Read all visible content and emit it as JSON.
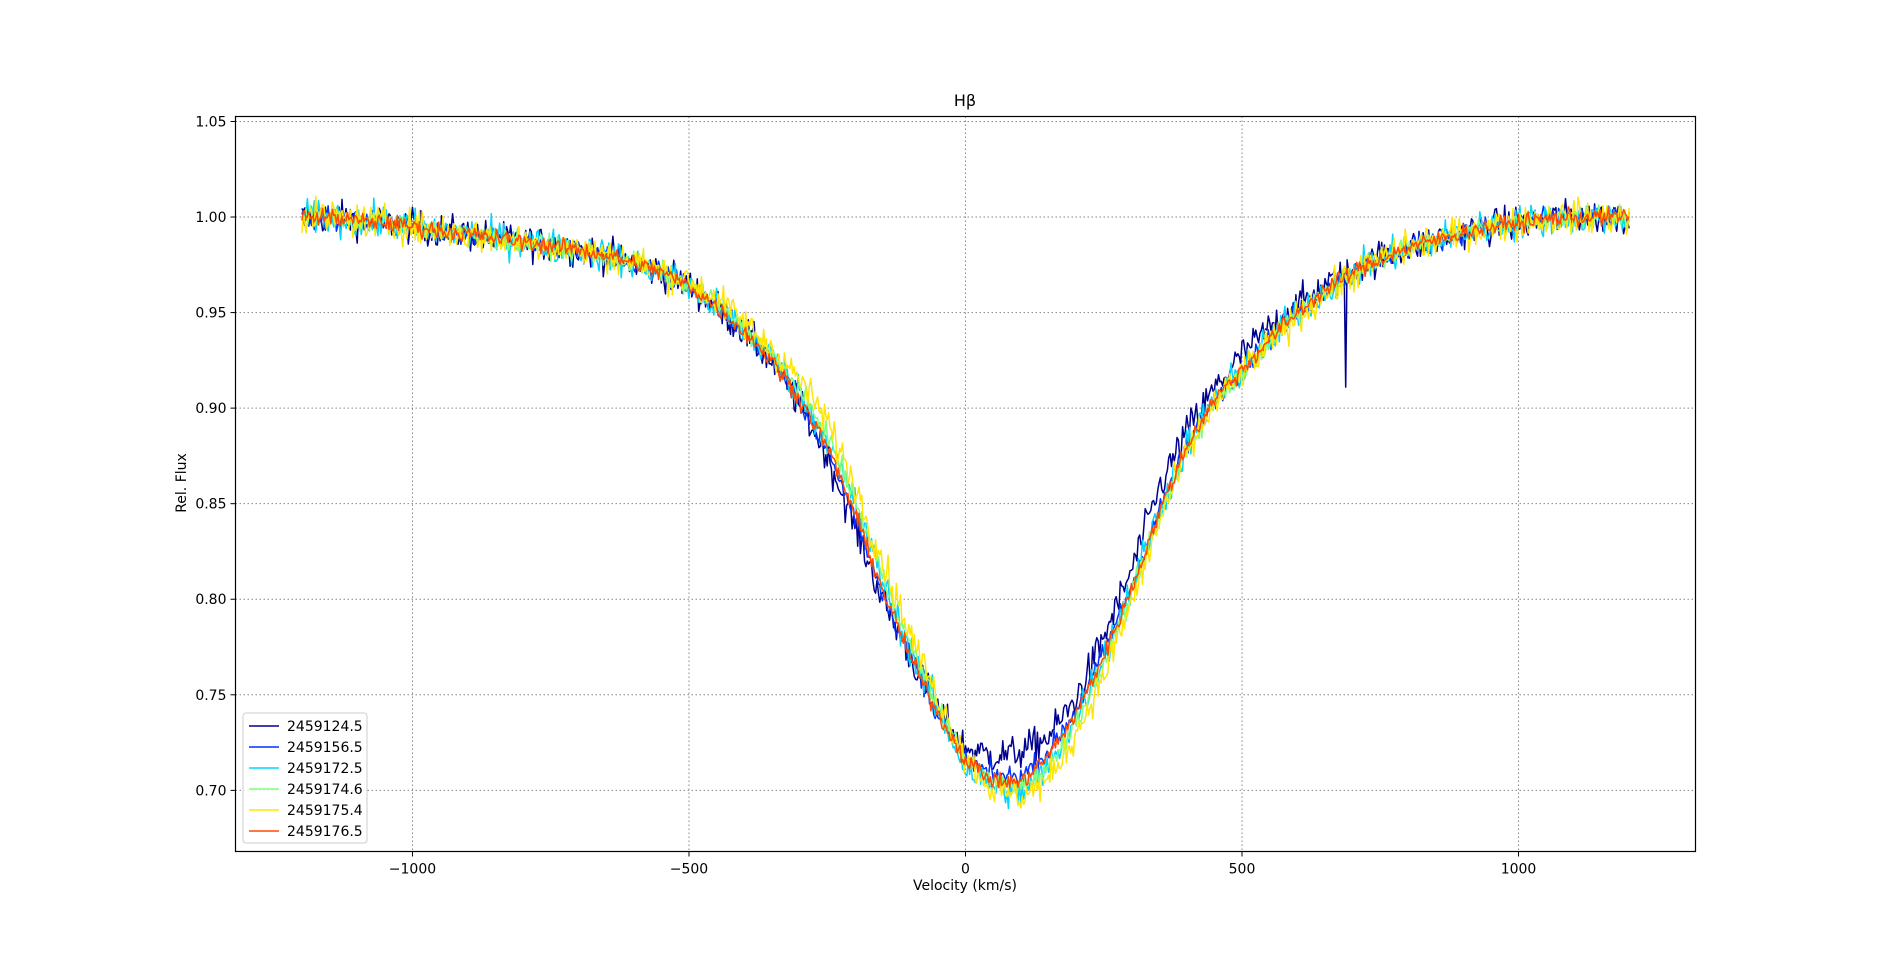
{
  "chart_data": {
    "type": "line",
    "title": "Hβ",
    "xlabel": "Velocity (km/s)",
    "ylabel": "Rel. Flux",
    "xlim": [
      -1320,
      1320
    ],
    "ylim": [
      0.668,
      1.0526
    ],
    "xticks": [
      -1000,
      -500,
      0,
      500,
      1000
    ],
    "xtick_labels": [
      "−1000",
      "−500",
      "0",
      "500",
      "1000"
    ],
    "yticks": [
      0.7,
      0.75,
      0.8,
      0.85,
      0.9,
      0.95,
      1.0,
      1.05
    ],
    "ytick_labels": [
      "0.70",
      "0.75",
      "0.80",
      "0.85",
      "0.90",
      "0.95",
      "1.00",
      "1.05"
    ],
    "grid": true,
    "legend_position": "lower-left",
    "x": [
      -1200,
      -1150,
      -1100,
      -1050,
      -1000,
      -950,
      -900,
      -850,
      -800,
      -750,
      -700,
      -650,
      -600,
      -550,
      -500,
      -450,
      -400,
      -350,
      -300,
      -250,
      -200,
      -150,
      -100,
      -50,
      0,
      50,
      100,
      150,
      200,
      250,
      300,
      350,
      400,
      450,
      500,
      550,
      600,
      650,
      700,
      750,
      800,
      850,
      900,
      950,
      1000,
      1050,
      1100,
      1150,
      1200
    ],
    "series": [
      {
        "name": "2459124.5",
        "color": "#00008f",
        "noise": 0.008,
        "spike": [
          688,
          0.911
        ],
        "values": [
          1.0,
          1.0,
          0.998,
          0.997,
          0.995,
          0.993,
          0.991,
          0.989,
          0.987,
          0.985,
          0.983,
          0.98,
          0.976,
          0.971,
          0.964,
          0.953,
          0.94,
          0.924,
          0.902,
          0.875,
          0.838,
          0.8,
          0.77,
          0.742,
          0.722,
          0.718,
          0.72,
          0.728,
          0.748,
          0.78,
          0.815,
          0.858,
          0.888,
          0.91,
          0.928,
          0.942,
          0.954,
          0.964,
          0.972,
          0.979,
          0.984,
          0.988,
          0.992,
          0.995,
          0.997,
          0.999,
          1.0,
          1.0,
          1.0
        ]
      },
      {
        "name": "2459156.5",
        "color": "#0033ff",
        "noise": 0.005,
        "values": [
          1.0,
          1.0,
          0.998,
          0.997,
          0.995,
          0.993,
          0.991,
          0.989,
          0.987,
          0.985,
          0.983,
          0.98,
          0.976,
          0.971,
          0.964,
          0.953,
          0.94,
          0.925,
          0.904,
          0.878,
          0.843,
          0.804,
          0.77,
          0.74,
          0.716,
          0.708,
          0.707,
          0.72,
          0.742,
          0.772,
          0.807,
          0.846,
          0.88,
          0.905,
          0.92,
          0.936,
          0.95,
          0.962,
          0.971,
          0.978,
          0.984,
          0.988,
          0.992,
          0.995,
          0.997,
          0.999,
          1.0,
          1.0,
          1.0
        ]
      },
      {
        "name": "2459172.5",
        "color": "#00d4ff",
        "noise": 0.008,
        "values": [
          1.0,
          1.0,
          0.998,
          0.997,
          0.995,
          0.993,
          0.991,
          0.989,
          0.987,
          0.985,
          0.983,
          0.98,
          0.976,
          0.971,
          0.964,
          0.953,
          0.941,
          0.927,
          0.908,
          0.884,
          0.85,
          0.81,
          0.774,
          0.742,
          0.712,
          0.702,
          0.698,
          0.712,
          0.738,
          0.77,
          0.806,
          0.846,
          0.88,
          0.905,
          0.92,
          0.936,
          0.95,
          0.962,
          0.971,
          0.978,
          0.984,
          0.988,
          0.992,
          0.995,
          0.997,
          0.999,
          1.0,
          1.0,
          1.0
        ]
      },
      {
        "name": "2459174.6",
        "color": "#7dff7a",
        "noise": 0.005,
        "values": [
          1.0,
          1.0,
          0.998,
          0.997,
          0.995,
          0.993,
          0.991,
          0.989,
          0.987,
          0.985,
          0.983,
          0.98,
          0.976,
          0.971,
          0.964,
          0.954,
          0.942,
          0.928,
          0.909,
          0.886,
          0.852,
          0.812,
          0.776,
          0.744,
          0.716,
          0.704,
          0.702,
          0.712,
          0.736,
          0.766,
          0.802,
          0.842,
          0.878,
          0.903,
          0.919,
          0.935,
          0.949,
          0.961,
          0.971,
          0.978,
          0.984,
          0.988,
          0.992,
          0.995,
          0.997,
          0.999,
          1.0,
          1.0,
          1.0
        ]
      },
      {
        "name": "2459175.4",
        "color": "#ffe500",
        "noise": 0.008,
        "values": [
          1.0,
          1.0,
          0.998,
          0.997,
          0.995,
          0.993,
          0.991,
          0.989,
          0.987,
          0.985,
          0.983,
          0.98,
          0.977,
          0.972,
          0.966,
          0.957,
          0.945,
          0.931,
          0.915,
          0.893,
          0.86,
          0.82,
          0.782,
          0.748,
          0.718,
          0.7,
          0.697,
          0.705,
          0.73,
          0.76,
          0.798,
          0.84,
          0.876,
          0.902,
          0.918,
          0.934,
          0.948,
          0.96,
          0.97,
          0.978,
          0.984,
          0.988,
          0.992,
          0.995,
          0.997,
          0.999,
          1.0,
          1.0,
          1.0
        ]
      },
      {
        "name": "2459176.5",
        "color": "#ff4a00",
        "noise": 0.004,
        "values": [
          1.0,
          1.0,
          0.998,
          0.997,
          0.995,
          0.993,
          0.991,
          0.989,
          0.987,
          0.985,
          0.983,
          0.98,
          0.976,
          0.971,
          0.964,
          0.953,
          0.94,
          0.925,
          0.905,
          0.88,
          0.845,
          0.805,
          0.77,
          0.74,
          0.716,
          0.705,
          0.704,
          0.718,
          0.74,
          0.77,
          0.805,
          0.845,
          0.88,
          0.905,
          0.92,
          0.936,
          0.95,
          0.962,
          0.971,
          0.978,
          0.984,
          0.988,
          0.992,
          0.995,
          0.997,
          0.999,
          1.0,
          1.0,
          1.0
        ]
      }
    ]
  }
}
